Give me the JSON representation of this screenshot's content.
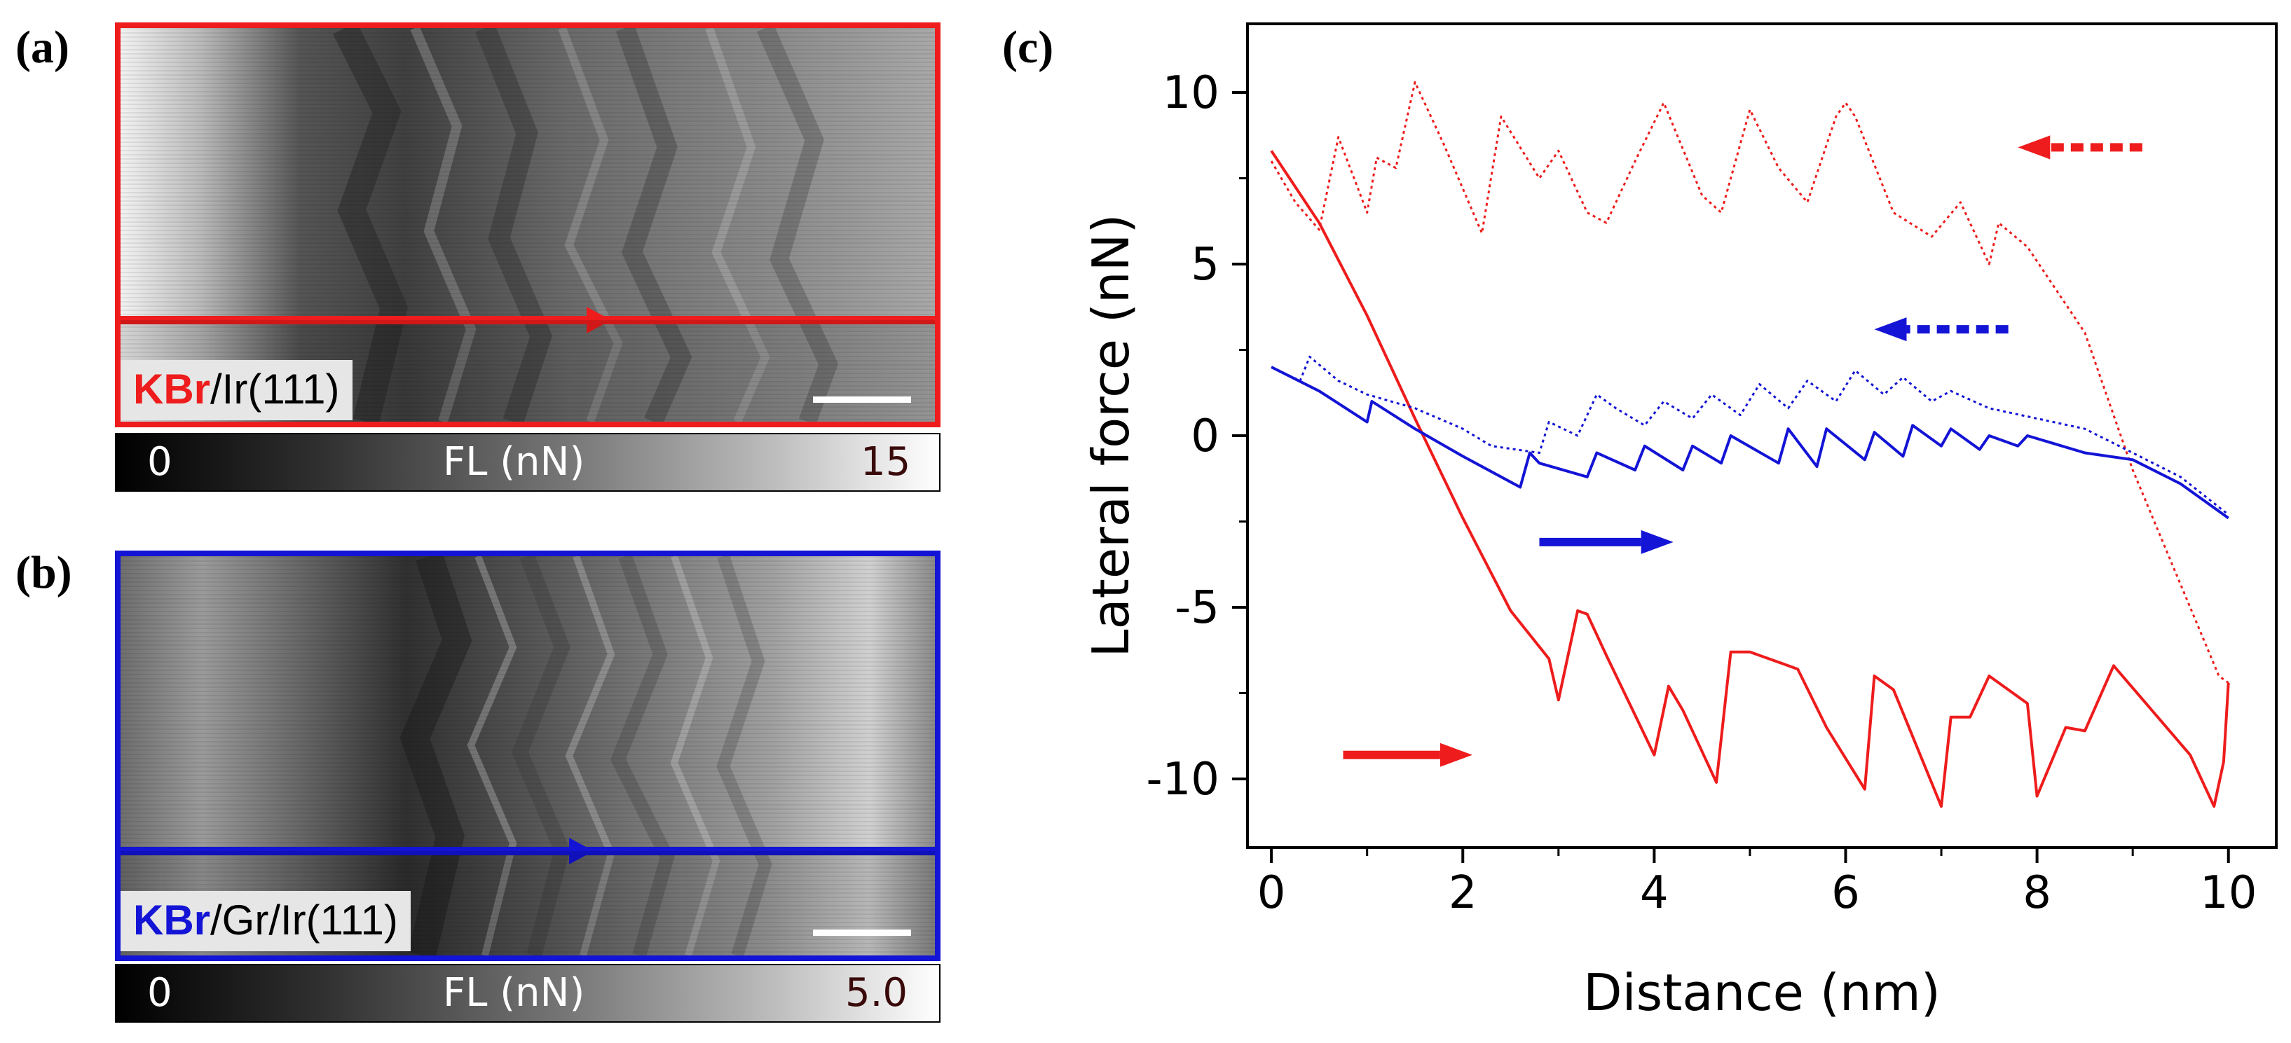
{
  "panels": {
    "a": {
      "letter": "(a)",
      "label_element": "KBr",
      "label_substrate": "/Ir(111)",
      "colorbar_min": "0",
      "colorbar_max": "15",
      "colorbar_label": "FL (nN)",
      "accent": "#ee1c1c"
    },
    "b": {
      "letter": "(b)",
      "label_element": "KBr",
      "label_substrate": "/Gr/Ir(111)",
      "colorbar_min": "0",
      "colorbar_max": "5.0",
      "colorbar_label": "FL (nN)",
      "accent": "#1414d6"
    },
    "c": {
      "letter": "(c)"
    }
  },
  "chart_data": {
    "type": "line",
    "xlabel": "Distance (nm)",
    "ylabel": "Lateral force (nN)",
    "xlim": [
      -0.25,
      10.5
    ],
    "ylim": [
      -12,
      12
    ],
    "xticks": [
      0,
      2,
      4,
      6,
      8,
      10
    ],
    "yticks": [
      -10,
      -5,
      0,
      5,
      10
    ],
    "series": [
      {
        "name": "KBr/Ir(111) forward",
        "color": "#ee1c1c",
        "style": "solid",
        "x": [
          0,
          0.5,
          1.0,
          1.5,
          2.0,
          2.5,
          2.9,
          3.0,
          3.2,
          3.3,
          3.5,
          4.0,
          4.15,
          4.3,
          4.65,
          4.8,
          5.0,
          5.5,
          5.8,
          6.2,
          6.3,
          6.5,
          7.0,
          7.1,
          7.3,
          7.5,
          7.9,
          8.0,
          8.3,
          8.5,
          8.8,
          9.2,
          9.6,
          9.85,
          9.95,
          10.0
        ],
        "y": [
          8.3,
          6.2,
          3.5,
          0.5,
          -2.4,
          -5.1,
          -6.5,
          -7.7,
          -5.1,
          -5.2,
          -6.4,
          -9.3,
          -7.3,
          -8.0,
          -10.1,
          -6.3,
          -6.3,
          -6.8,
          -8.5,
          -10.3,
          -7.0,
          -7.4,
          -10.8,
          -8.2,
          -8.2,
          -7.0,
          -7.8,
          -10.5,
          -8.5,
          -8.6,
          -6.7,
          -8.0,
          -9.3,
          -10.8,
          -9.5,
          -7.2
        ]
      },
      {
        "name": "KBr/Ir(111) backward",
        "color": "#ee1c1c",
        "style": "dotted",
        "x": [
          0,
          0.25,
          0.5,
          0.7,
          1.0,
          1.1,
          1.3,
          1.5,
          1.8,
          2.2,
          2.4,
          2.8,
          3.0,
          3.3,
          3.5,
          3.8,
          4.1,
          4.5,
          4.7,
          5.0,
          5.3,
          5.6,
          5.9,
          6.0,
          6.1,
          6.5,
          6.9,
          7.2,
          7.5,
          7.6,
          7.9,
          8.5,
          9.0,
          9.6,
          9.9,
          10.0
        ],
        "y": [
          8.0,
          6.8,
          6.0,
          8.7,
          6.5,
          8.1,
          7.8,
          10.3,
          8.5,
          5.9,
          9.3,
          7.5,
          8.3,
          6.5,
          6.2,
          8.0,
          9.7,
          7.0,
          6.5,
          9.5,
          7.8,
          6.8,
          9.3,
          9.7,
          9.3,
          6.5,
          5.8,
          6.8,
          5.0,
          6.2,
          5.5,
          3.0,
          -1.0,
          -5.0,
          -7.0,
          -7.2
        ]
      },
      {
        "name": "KBr/Gr/Ir(111) forward",
        "color": "#1414d6",
        "style": "solid",
        "x": [
          0,
          0.5,
          1.0,
          1.05,
          1.5,
          2.0,
          2.6,
          2.7,
          2.8,
          3.3,
          3.4,
          3.8,
          3.9,
          4.3,
          4.4,
          4.7,
          4.8,
          5.3,
          5.4,
          5.7,
          5.8,
          6.2,
          6.3,
          6.6,
          6.7,
          7.0,
          7.1,
          7.4,
          7.5,
          7.8,
          7.9,
          8.5,
          9.0,
          9.5,
          10.0
        ],
        "y": [
          2.0,
          1.3,
          0.4,
          1.0,
          0.2,
          -0.6,
          -1.5,
          -0.5,
          -0.8,
          -1.2,
          -0.5,
          -1.0,
          -0.3,
          -1.0,
          -0.3,
          -0.8,
          0.0,
          -0.8,
          0.2,
          -0.9,
          0.2,
          -0.7,
          0.1,
          -0.6,
          0.3,
          -0.3,
          0.2,
          -0.4,
          0.0,
          -0.3,
          0.0,
          -0.5,
          -0.7,
          -1.4,
          -2.4
        ]
      },
      {
        "name": "KBr/Gr/Ir(111) backward",
        "color": "#1414d6",
        "style": "dotted",
        "x": [
          0,
          0.3,
          0.4,
          0.7,
          1.0,
          1.5,
          2.0,
          2.3,
          2.8,
          2.9,
          3.2,
          3.4,
          3.6,
          3.9,
          4.1,
          4.4,
          4.6,
          4.9,
          5.1,
          5.4,
          5.6,
          5.9,
          6.1,
          6.4,
          6.6,
          6.9,
          7.1,
          7.5,
          8.0,
          8.5,
          9.0,
          9.5,
          10.0
        ],
        "y": [
          2.0,
          1.6,
          2.3,
          1.6,
          1.2,
          0.8,
          0.2,
          -0.3,
          -0.5,
          0.4,
          0.0,
          1.2,
          0.8,
          0.3,
          1.0,
          0.5,
          1.2,
          0.6,
          1.5,
          0.8,
          1.6,
          1.0,
          1.9,
          1.2,
          1.7,
          1.0,
          1.3,
          0.8,
          0.5,
          0.2,
          -0.5,
          -1.2,
          -2.3
        ]
      }
    ],
    "direction_arrows": [
      {
        "color": "#ee1c1c",
        "style": "dashed",
        "direction": "left",
        "x0": 9.1,
        "x1": 7.8,
        "y": 8.4
      },
      {
        "color": "#1414d6",
        "style": "dashed",
        "direction": "left",
        "x0": 7.7,
        "x1": 6.3,
        "y": 3.1
      },
      {
        "color": "#1414d6",
        "style": "solid",
        "direction": "right",
        "x0": 2.8,
        "x1": 4.2,
        "y": -3.1
      },
      {
        "color": "#ee1c1c",
        "style": "solid",
        "direction": "right",
        "x0": 0.75,
        "x1": 2.1,
        "y": -9.3
      }
    ]
  }
}
